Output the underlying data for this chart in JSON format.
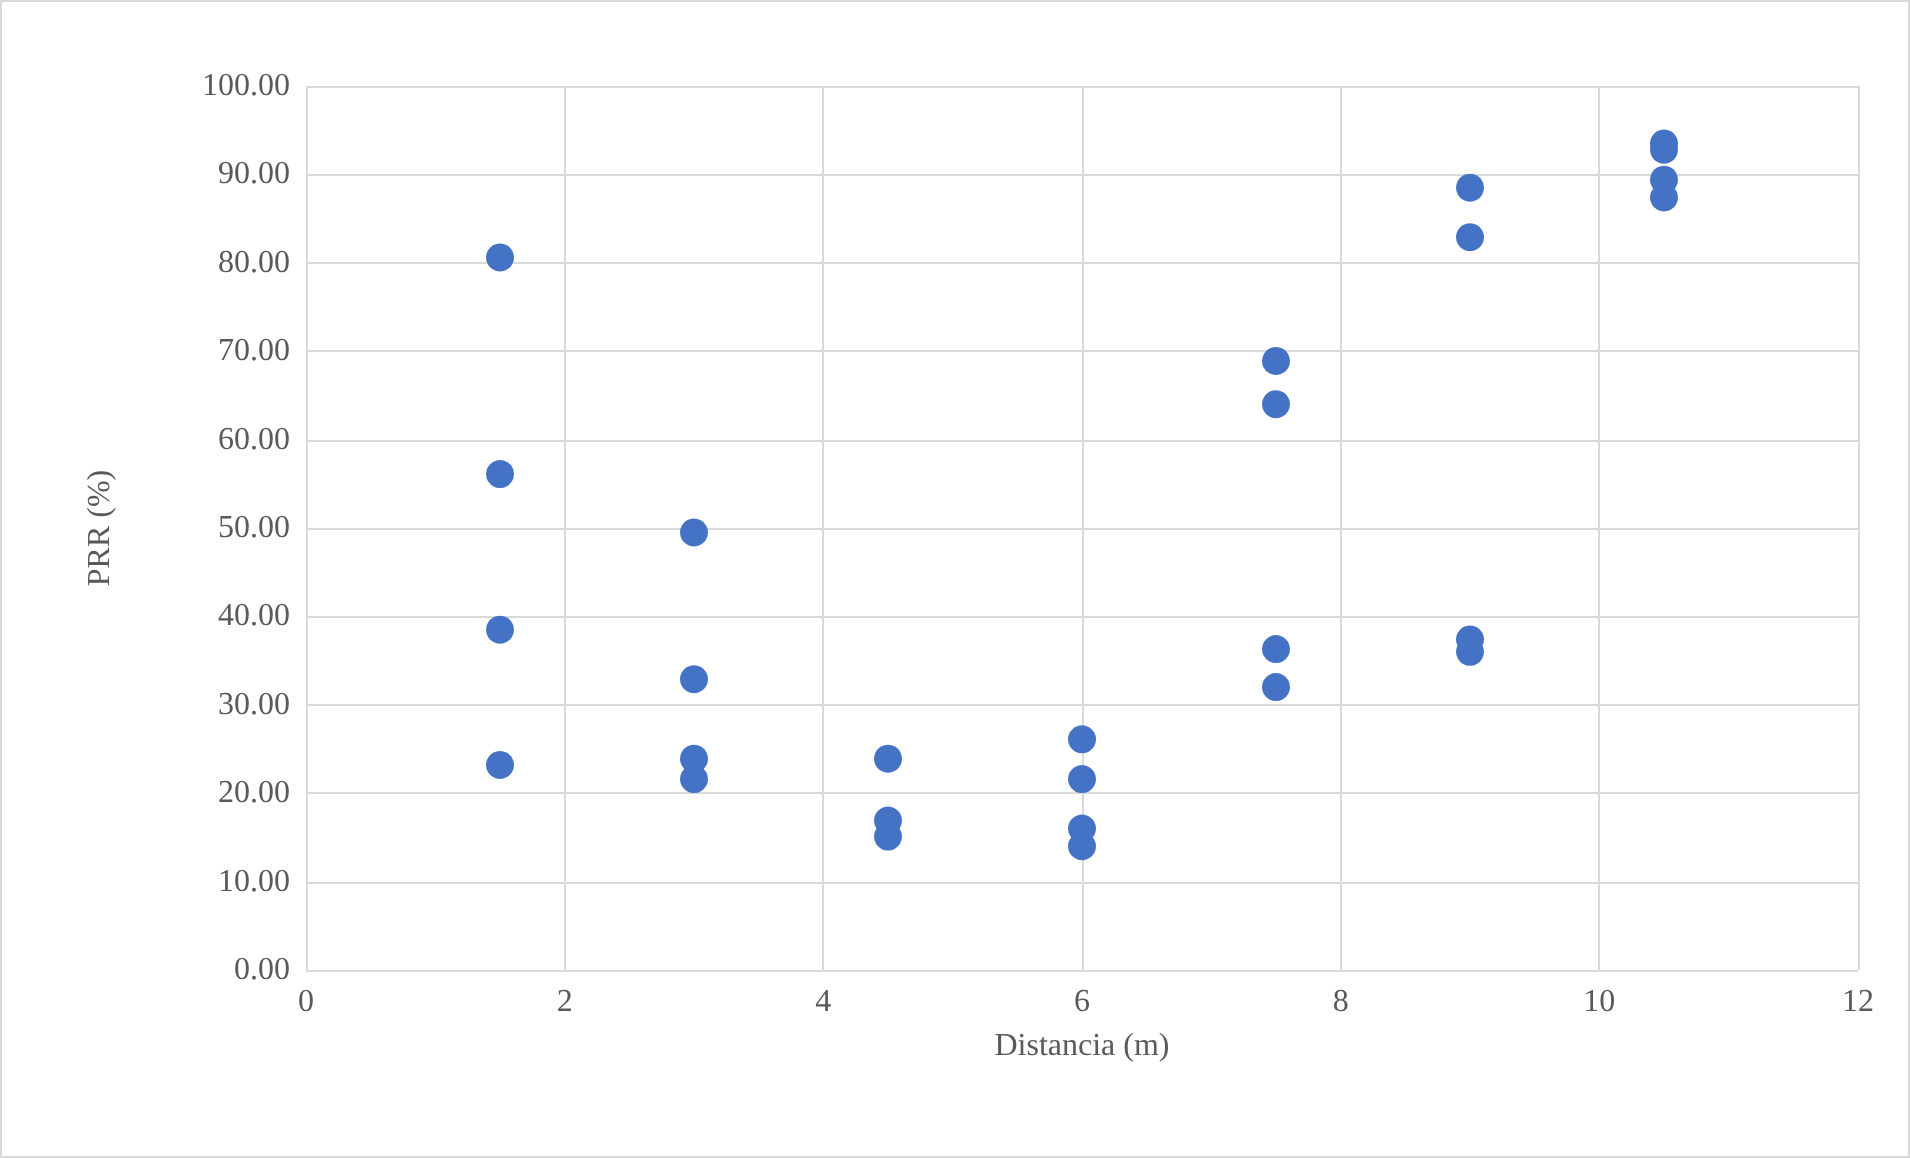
{
  "chart_data": {
    "type": "scatter",
    "xlabel": "Distancia (m)",
    "ylabel": "PRR (%)",
    "x": [
      1.5,
      1.5,
      1.5,
      1.5,
      3,
      3,
      3,
      3,
      4.5,
      4.5,
      4.5,
      6,
      6,
      6,
      6,
      7.5,
      7.5,
      7.5,
      7.5,
      9,
      9,
      9,
      9,
      10.5,
      10.5,
      10.5,
      10.5
    ],
    "values": [
      80.6,
      56.1,
      38.5,
      23.2,
      49.5,
      32.9,
      23.9,
      21.6,
      23.9,
      16.9,
      15.1,
      26.1,
      21.6,
      16.0,
      14.0,
      68.9,
      64.0,
      36.3,
      32.0,
      88.5,
      82.9,
      37.4,
      36.0,
      93.5,
      92.8,
      89.4,
      87.4
    ],
    "color": "#4472c4",
    "marker": "circle",
    "xlim": [
      0,
      12
    ],
    "xticks": [
      0,
      2,
      4,
      6,
      8,
      10,
      12
    ],
    "ylim": [
      0,
      100
    ],
    "yticks": [
      {
        "value": 0,
        "label": "0.00"
      },
      {
        "value": 10,
        "label": "10.00"
      },
      {
        "value": 20,
        "label": "20.00"
      },
      {
        "value": 30,
        "label": "30.00"
      },
      {
        "value": 40,
        "label": "40.00"
      },
      {
        "value": 50,
        "label": "50.00"
      },
      {
        "value": 60,
        "label": "60.00"
      },
      {
        "value": 70,
        "label": "70.00"
      },
      {
        "value": 80,
        "label": "80.00"
      },
      {
        "value": 90,
        "label": "90.00"
      },
      {
        "value": 100,
        "label": "100.00"
      }
    ],
    "grid": true
  }
}
